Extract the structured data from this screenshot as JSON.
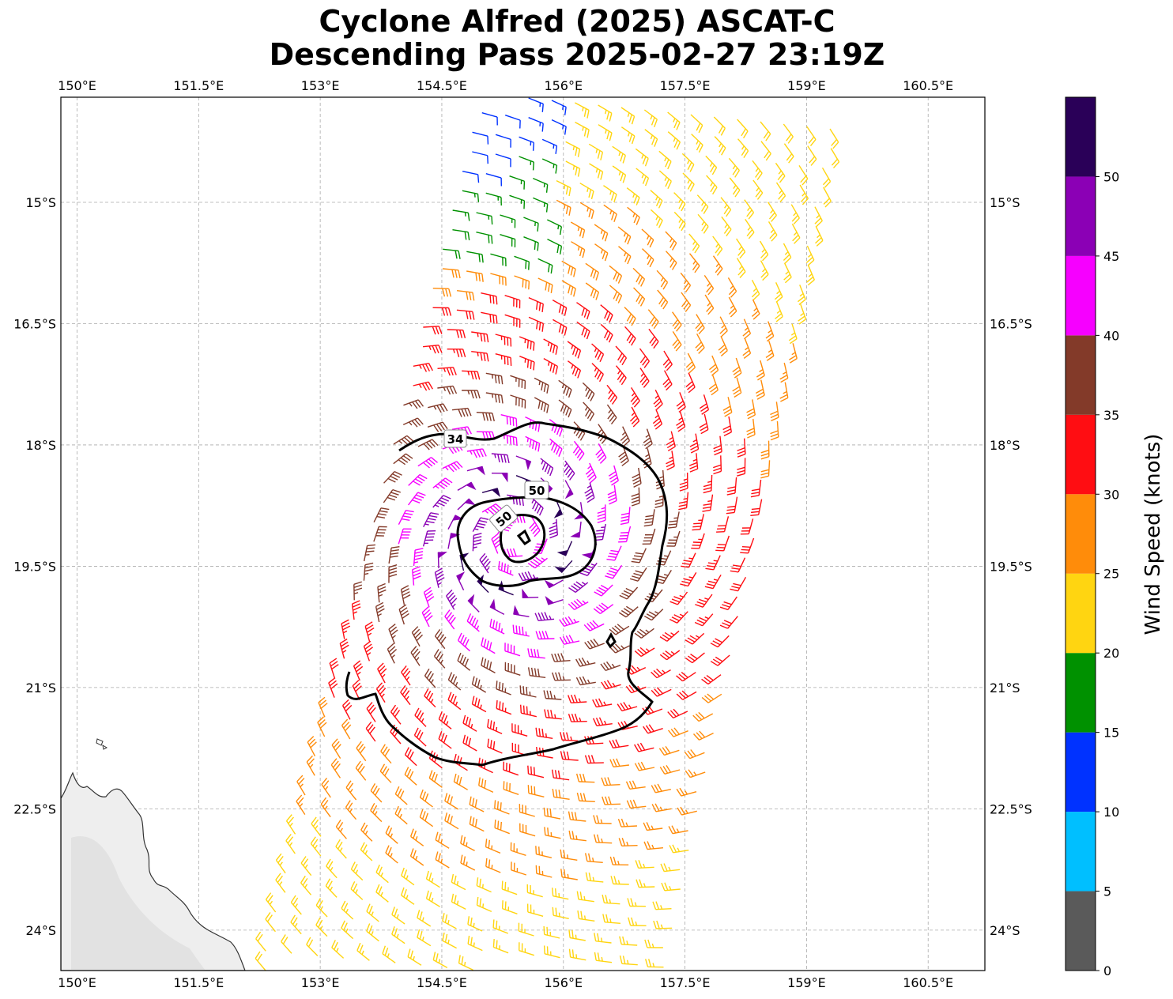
{
  "title": {
    "line1": "Cyclone Alfred (2025) ASCAT-C",
    "line2": "Descending Pass 2025-02-27 23:19Z"
  },
  "map": {
    "lon_range": [
      149.8,
      161.2
    ],
    "lat_range": [
      -24.5,
      -13.7
    ],
    "x_ticks": [
      {
        "value": 150.0,
        "label": "150°E"
      },
      {
        "value": 151.5,
        "label": "151.5°E"
      },
      {
        "value": 153.0,
        "label": "153°E"
      },
      {
        "value": 154.5,
        "label": "154.5°E"
      },
      {
        "value": 156.0,
        "label": "156°E"
      },
      {
        "value": 157.5,
        "label": "157.5°E"
      },
      {
        "value": 159.0,
        "label": "159°E"
      },
      {
        "value": 160.5,
        "label": "160.5°E"
      }
    ],
    "y_ticks": [
      {
        "value": -15.0,
        "label": "15°S"
      },
      {
        "value": -16.5,
        "label": "16.5°S"
      },
      {
        "value": -18.0,
        "label": "18°S"
      },
      {
        "value": -19.5,
        "label": "19.5°S"
      },
      {
        "value": -21.0,
        "label": "21°S"
      },
      {
        "value": -22.5,
        "label": "22.5°S"
      },
      {
        "value": -24.0,
        "label": "24°S"
      }
    ],
    "gridlines": true,
    "storm_center": {
      "lon": 155.4,
      "lat": -19.15
    },
    "contours": [
      {
        "level": "34",
        "label": "34"
      },
      {
        "level": "50",
        "label": "50"
      },
      {
        "level": "50",
        "label": "50"
      }
    ]
  },
  "colorbar": {
    "label": "Wind Speed (knots)",
    "bins": [
      {
        "from": 0,
        "to": 5,
        "color": "#5a5a5a"
      },
      {
        "from": 5,
        "to": 10,
        "color": "#00bfff"
      },
      {
        "from": 10,
        "to": 15,
        "color": "#0032ff"
      },
      {
        "from": 15,
        "to": 20,
        "color": "#009100"
      },
      {
        "from": 20,
        "to": 25,
        "color": "#ffd511"
      },
      {
        "from": 25,
        "to": 30,
        "color": "#ff8c0a"
      },
      {
        "from": 30,
        "to": 35,
        "color": "#ff0d12"
      },
      {
        "from": 35,
        "to": 40,
        "color": "#833a29"
      },
      {
        "from": 40,
        "to": 45,
        "color": "#f600ff"
      },
      {
        "from": 45,
        "to": 50,
        "color": "#8b00b5"
      },
      {
        "from": 50,
        "to": 55,
        "color": "#2a0058"
      }
    ],
    "ticks": [
      "0",
      "5",
      "10",
      "15",
      "20",
      "25",
      "30",
      "35",
      "40",
      "45",
      "50"
    ]
  }
}
